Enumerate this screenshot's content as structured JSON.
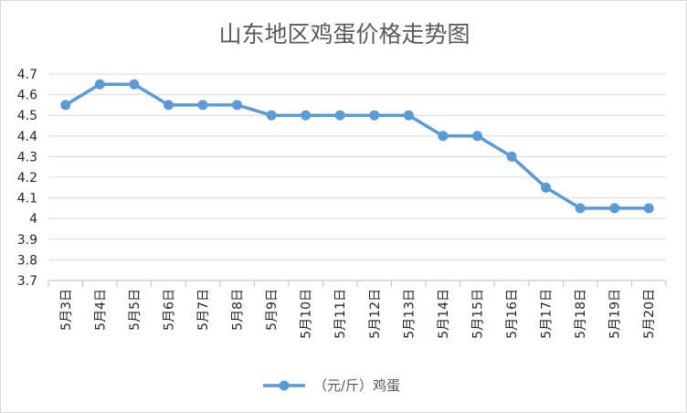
{
  "chart_data": {
    "type": "line",
    "title": "山东地区鸡蛋价格走势图",
    "xlabel": "",
    "ylabel": "",
    "categories": [
      "5月3日",
      "5月4日",
      "5月5日",
      "5月6日",
      "5月7日",
      "5月8日",
      "5月9日",
      "5月10日",
      "5月11日",
      "5月12日",
      "5月13日",
      "5月14日",
      "5月15日",
      "5月16日",
      "5月17日",
      "5月18日",
      "5月19日",
      "5月20日"
    ],
    "series": [
      {
        "name": "（元/斤）鸡蛋",
        "values": [
          4.55,
          4.65,
          4.65,
          4.55,
          4.55,
          4.55,
          4.5,
          4.5,
          4.5,
          4.5,
          4.5,
          4.4,
          4.4,
          4.3,
          4.15,
          4.05,
          4.05,
          4.05
        ]
      }
    ],
    "ylim": [
      3.7,
      4.7
    ],
    "yticks": [
      "3.7",
      "3.8",
      "3.9",
      "4",
      "4.1",
      "4.2",
      "4.3",
      "4.4",
      "4.5",
      "4.6",
      "4.7"
    ],
    "grid": true,
    "legend_position": "bottom",
    "colors": {
      "series": "#5b9bd5",
      "grid": "#d9d9d9",
      "axis": "#bfbfbf"
    }
  }
}
